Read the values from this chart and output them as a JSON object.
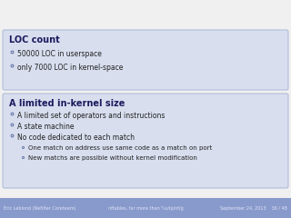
{
  "slide_bg": "#f0f0f0",
  "box_bg": "#d8deee",
  "box_border": "#b0bcd8",
  "title_color": "#1a1a5e",
  "text_color": "#222222",
  "subtext_color": "#333333",
  "bullet_color": "#6677aa",
  "footer_bg": "#8899cc",
  "footer_text": "#e0e5f5",
  "box1_title": "A limited in-kernel size",
  "box1_items": [
    "A limited set of operators and instructions",
    "A state machine",
    "No code dedicated to each match"
  ],
  "box1_subitems": [
    "One match on address use same code as a match on port",
    "New matchs are possible without kernel modification"
  ],
  "box2_title": "LOC count",
  "box2_items": [
    "50000 LOC in userspace",
    "only 7000 LOC in kernel-space"
  ],
  "footer_left": "Éric Leblond (Nefilter Coreteam)",
  "footer_center": "nftables, far more than %s/ip/nf/g",
  "footer_right": "September 24, 2013    36 / 48"
}
